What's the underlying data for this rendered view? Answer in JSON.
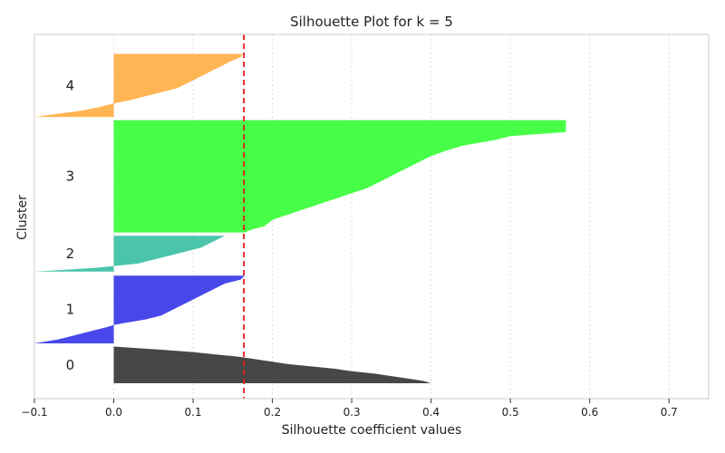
{
  "chart_data": {
    "type": "area",
    "title": "Silhouette Plot for k = 5",
    "xlabel": "Silhouette coefficient values",
    "ylabel": "Cluster",
    "xlim": [
      -0.1,
      0.75
    ],
    "xticks": [
      -0.1,
      0.0,
      0.1,
      0.2,
      0.3,
      0.4,
      0.5,
      0.6,
      0.7
    ],
    "xtick_labels": [
      "−0.1",
      "0.0",
      "0.1",
      "0.2",
      "0.3",
      "0.4",
      "0.5",
      "0.6",
      "0.7"
    ],
    "grid": "x-dotted",
    "average_line": {
      "value": 0.164,
      "color": "#e31a1c",
      "style": "dashed"
    },
    "clusters": [
      {
        "label": "0",
        "color": "#333333",
        "y_range": [
          0,
          46
        ],
        "profile": [
          [
            0,
            0.4
          ],
          [
            3,
            0.39
          ],
          [
            6,
            0.37
          ],
          [
            9,
            0.35
          ],
          [
            12,
            0.33
          ],
          [
            15,
            0.3
          ],
          [
            18,
            0.28
          ],
          [
            21,
            0.25
          ],
          [
            24,
            0.22
          ],
          [
            27,
            0.2
          ],
          [
            30,
            0.18
          ],
          [
            33,
            0.16
          ],
          [
            36,
            0.13
          ],
          [
            39,
            0.1
          ],
          [
            42,
            0.06
          ],
          [
            44,
            0.03
          ],
          [
            46,
            0.0
          ]
        ]
      },
      {
        "label": "1",
        "color": "#3333e8",
        "y_range": [
          50,
          135
        ],
        "profile": [
          [
            50,
            -0.1
          ],
          [
            55,
            -0.07
          ],
          [
            60,
            -0.05
          ],
          [
            65,
            -0.03
          ],
          [
            70,
            -0.01
          ],
          [
            73,
            0.0
          ],
          [
            75,
            0.01
          ],
          [
            80,
            0.04
          ],
          [
            85,
            0.06
          ],
          [
            90,
            0.07
          ],
          [
            95,
            0.08
          ],
          [
            100,
            0.09
          ],
          [
            105,
            0.1
          ],
          [
            110,
            0.11
          ],
          [
            115,
            0.12
          ],
          [
            120,
            0.13
          ],
          [
            125,
            0.14
          ],
          [
            130,
            0.16
          ],
          [
            135,
            0.165
          ]
        ]
      },
      {
        "label": "2",
        "color": "#36bfa3",
        "y_range": [
          140,
          185
        ],
        "profile": [
          [
            140,
            -0.1
          ],
          [
            143,
            -0.05
          ],
          [
            145,
            -0.02
          ],
          [
            147,
            0.0
          ],
          [
            150,
            0.03
          ],
          [
            155,
            0.05
          ],
          [
            160,
            0.07
          ],
          [
            165,
            0.09
          ],
          [
            170,
            0.11
          ],
          [
            175,
            0.12
          ],
          [
            180,
            0.13
          ],
          [
            185,
            0.14
          ]
        ]
      },
      {
        "label": "3",
        "color": "#33ff33",
        "y_range": [
          189,
          330
        ],
        "profile": [
          [
            189,
            0.165
          ],
          [
            193,
            0.175
          ],
          [
            197,
            0.19
          ],
          [
            205,
            0.2
          ],
          [
            215,
            0.23
          ],
          [
            225,
            0.26
          ],
          [
            235,
            0.29
          ],
          [
            245,
            0.32
          ],
          [
            255,
            0.34
          ],
          [
            265,
            0.36
          ],
          [
            275,
            0.38
          ],
          [
            285,
            0.4
          ],
          [
            292,
            0.42
          ],
          [
            298,
            0.44
          ],
          [
            305,
            0.48
          ],
          [
            310,
            0.5
          ],
          [
            315,
            0.57
          ],
          [
            330,
            0.57
          ]
        ]
      },
      {
        "label": "4",
        "color": "#ffad40",
        "y_range": [
          334,
          413
        ],
        "profile": [
          [
            334,
            -0.1
          ],
          [
            338,
            -0.07
          ],
          [
            342,
            -0.04
          ],
          [
            346,
            -0.02
          ],
          [
            351,
            0.0
          ],
          [
            355,
            0.02
          ],
          [
            360,
            0.04
          ],
          [
            365,
            0.06
          ],
          [
            370,
            0.08
          ],
          [
            375,
            0.09
          ],
          [
            380,
            0.1
          ],
          [
            385,
            0.11
          ],
          [
            390,
            0.12
          ],
          [
            395,
            0.13
          ],
          [
            400,
            0.14
          ],
          [
            405,
            0.15
          ],
          [
            409,
            0.16
          ],
          [
            413,
            0.162
          ]
        ]
      }
    ]
  }
}
